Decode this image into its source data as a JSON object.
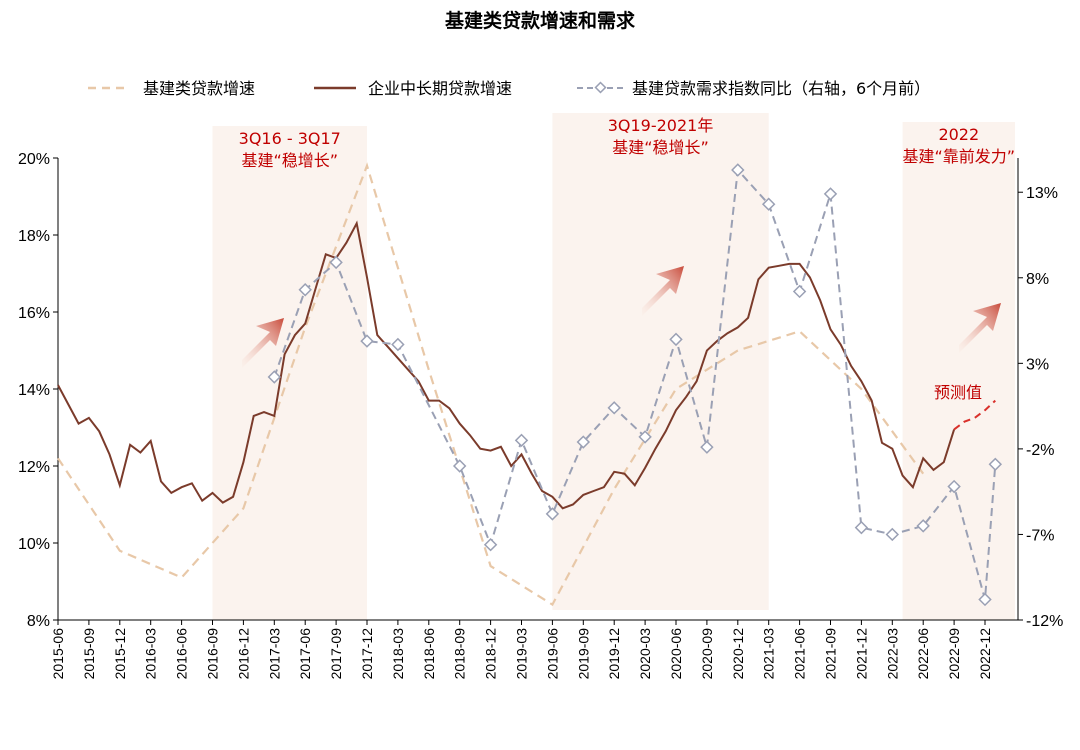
{
  "chart_data": {
    "type": "line",
    "title": "基建类贷款增速和需求",
    "legend": [
      {
        "label": "基建类贷款增速",
        "color": "#e8c8a8",
        "style": "dashed"
      },
      {
        "label": "企业中长期贷款增速",
        "color": "#7b3b2b",
        "style": "solid"
      },
      {
        "label": "基建贷款需求指数同比（右轴，6个月前）",
        "color": "#9aa0b4",
        "style": "dashed-diamond"
      }
    ],
    "y_left": {
      "ticks": [
        "8%",
        "10%",
        "12%",
        "14%",
        "16%",
        "18%",
        "20%"
      ],
      "range": [
        8,
        20
      ]
    },
    "y_right": {
      "ticks": [
        "-12%",
        "-7%",
        "-2%",
        "3%",
        "8%",
        "13%"
      ],
      "range": [
        -12,
        15
      ]
    },
    "x_ticks": [
      "2015-06",
      "2015-09",
      "2015-12",
      "2016-03",
      "2016-06",
      "2016-09",
      "2016-12",
      "2017-03",
      "2017-06",
      "2017-09",
      "2017-12",
      "2018-03",
      "2018-06",
      "2018-09",
      "2018-12",
      "2019-03",
      "2019-06",
      "2019-09",
      "2019-12",
      "2020-03",
      "2020-06",
      "2020-09",
      "2020-12",
      "2021-03",
      "2021-06",
      "2021-09",
      "2021-12",
      "2022-03",
      "2022-06",
      "2022-09",
      "2022-12"
    ],
    "shaded_periods": [
      {
        "start": "2016-09",
        "end": "2017-12",
        "label_line1": "3Q16 - 3Q17",
        "label_line2": "基建“稳增长”"
      },
      {
        "start": "2019-06",
        "end": "2021-03",
        "label_line1": "3Q19-2021年",
        "label_line2": "基建“稳增长”"
      },
      {
        "start": "2022-04",
        "end": "2022-12",
        "label_line1": "2022",
        "label_line2": "基建“靠前发力”"
      }
    ],
    "forecast_label": "预测值",
    "series": [
      {
        "name": "基建类贷款增速",
        "points": [
          [
            "2015-06",
            12.2
          ],
          [
            "2015-12",
            9.8
          ],
          [
            "2016-06",
            9.1
          ],
          [
            "2016-12",
            10.9
          ],
          [
            "2017-06",
            15.6
          ],
          [
            "2017-12",
            19.8
          ],
          [
            "2018-06",
            14.5
          ],
          [
            "2018-12",
            9.4
          ],
          [
            "2019-06",
            8.4
          ],
          [
            "2019-12",
            11.4
          ],
          [
            "2020-06",
            14.0
          ],
          [
            "2020-12",
            15.0
          ],
          [
            "2021-06",
            15.5
          ],
          [
            "2021-12",
            14.0
          ],
          [
            "2022-06",
            11.8
          ]
        ]
      },
      {
        "name": "企业中长期贷款增速",
        "points": [
          [
            "2015-06",
            14.1
          ],
          [
            "2015-07",
            13.6
          ],
          [
            "2015-08",
            13.1
          ],
          [
            "2015-09",
            13.25
          ],
          [
            "2015-10",
            12.9
          ],
          [
            "2015-11",
            12.3
          ],
          [
            "2015-12",
            11.5
          ],
          [
            "2016-01",
            12.55
          ],
          [
            "2016-02",
            12.35
          ],
          [
            "2016-03",
            12.65
          ],
          [
            "2016-04",
            11.6
          ],
          [
            "2016-05",
            11.3
          ],
          [
            "2016-06",
            11.45
          ],
          [
            "2016-07",
            11.55
          ],
          [
            "2016-08",
            11.1
          ],
          [
            "2016-09",
            11.3
          ],
          [
            "2016-10",
            11.05
          ],
          [
            "2016-11",
            11.2
          ],
          [
            "2016-12",
            12.1
          ],
          [
            "2017-01",
            13.3
          ],
          [
            "2017-02",
            13.4
          ],
          [
            "2017-03",
            13.3
          ],
          [
            "2017-04",
            14.9
          ],
          [
            "2017-05",
            15.4
          ],
          [
            "2017-06",
            15.7
          ],
          [
            "2017-07",
            16.6
          ],
          [
            "2017-08",
            17.5
          ],
          [
            "2017-09",
            17.4
          ],
          [
            "2017-10",
            17.8
          ],
          [
            "2017-11",
            18.3
          ],
          [
            "2017-12",
            16.9
          ],
          [
            "2018-01",
            15.4
          ],
          [
            "2018-02",
            15.1
          ],
          [
            "2018-03",
            14.8
          ],
          [
            "2018-04",
            14.5
          ],
          [
            "2018-05",
            14.2
          ],
          [
            "2018-06",
            13.7
          ],
          [
            "2018-07",
            13.7
          ],
          [
            "2018-08",
            13.5
          ],
          [
            "2018-09",
            13.1
          ],
          [
            "2018-10",
            12.8
          ],
          [
            "2018-11",
            12.45
          ],
          [
            "2018-12",
            12.4
          ],
          [
            "2019-01",
            12.5
          ],
          [
            "2019-02",
            12.0
          ],
          [
            "2019-03",
            12.3
          ],
          [
            "2019-04",
            11.8
          ],
          [
            "2019-05",
            11.35
          ],
          [
            "2019-06",
            11.2
          ],
          [
            "2019-07",
            10.9
          ],
          [
            "2019-08",
            11.0
          ],
          [
            "2019-09",
            11.25
          ],
          [
            "2019-10",
            11.35
          ],
          [
            "2019-11",
            11.45
          ],
          [
            "2019-12",
            11.85
          ],
          [
            "2020-01",
            11.8
          ],
          [
            "2020-02",
            11.5
          ],
          [
            "2020-03",
            11.95
          ],
          [
            "2020-04",
            12.45
          ],
          [
            "2020-05",
            12.9
          ],
          [
            "2020-06",
            13.45
          ],
          [
            "2020-07",
            13.8
          ],
          [
            "2020-08",
            14.2
          ],
          [
            "2020-09",
            15.0
          ],
          [
            "2020-10",
            15.25
          ],
          [
            "2020-11",
            15.45
          ],
          [
            "2020-12",
            15.6
          ],
          [
            "2021-01",
            15.85
          ],
          [
            "2021-02",
            16.85
          ],
          [
            "2021-03",
            17.15
          ],
          [
            "2021-04",
            17.2
          ],
          [
            "2021-05",
            17.25
          ],
          [
            "2021-06",
            17.25
          ],
          [
            "2021-07",
            16.9
          ],
          [
            "2021-08",
            16.3
          ],
          [
            "2021-09",
            15.55
          ],
          [
            "2021-10",
            15.15
          ],
          [
            "2021-11",
            14.6
          ],
          [
            "2021-12",
            14.2
          ],
          [
            "2022-01",
            13.7
          ],
          [
            "2022-02",
            12.6
          ],
          [
            "2022-03",
            12.45
          ],
          [
            "2022-04",
            11.75
          ],
          [
            "2022-05",
            11.45
          ],
          [
            "2022-06",
            12.2
          ],
          [
            "2022-07",
            11.9
          ],
          [
            "2022-08",
            12.1
          ],
          [
            "2022-09",
            12.95
          ]
        ]
      },
      {
        "name": "企业中长期贷款增速（预测值）",
        "points": [
          [
            "2022-09",
            12.95
          ],
          [
            "2022-10",
            13.15
          ],
          [
            "2022-11",
            13.25
          ],
          [
            "2022-12",
            13.45
          ],
          [
            "2023-01",
            13.7
          ]
        ]
      },
      {
        "name": "基建贷款需求指数同比（右轴，6个月前）",
        "axis": "right",
        "points": [
          [
            "2017-03",
            2.2
          ],
          [
            "2017-06",
            7.3
          ],
          [
            "2017-09",
            8.9
          ],
          [
            "2017-12",
            4.3
          ],
          [
            "2018-03",
            4.1
          ],
          [
            "2018-09",
            -3.0
          ],
          [
            "2018-12",
            -7.6
          ],
          [
            "2019-03",
            -1.5
          ],
          [
            "2019-06",
            -5.8
          ],
          [
            "2019-09",
            -1.6
          ],
          [
            "2019-12",
            0.4
          ],
          [
            "2020-03",
            -1.3
          ],
          [
            "2020-06",
            4.4
          ],
          [
            "2020-09",
            -1.9
          ],
          [
            "2020-12",
            14.3
          ],
          [
            "2021-03",
            12.3
          ],
          [
            "2021-06",
            7.2
          ],
          [
            "2021-09",
            12.9
          ],
          [
            "2021-12",
            -6.6
          ],
          [
            "2022-03",
            -7.0
          ],
          [
            "2022-06",
            -6.5
          ],
          [
            "2022-09",
            -4.2
          ],
          [
            "2022-12",
            -10.8
          ],
          [
            "2023-01",
            -2.9
          ]
        ]
      }
    ]
  }
}
